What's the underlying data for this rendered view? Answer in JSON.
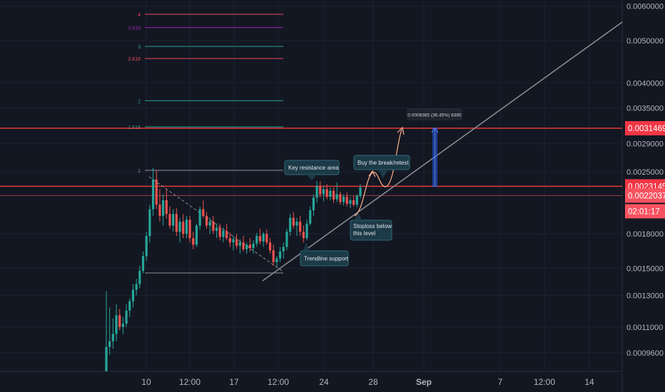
{
  "colors": {
    "background": "#131722",
    "grid": "#1e2230",
    "axis_text": "#b2b5be",
    "bull": "#26a69a",
    "bear": "#ef5350",
    "resistance_line": "#d32f2f",
    "support_line": "#8c8f96",
    "annotation_fill": "#1c3a47",
    "annotation_border": "#2f6a7a",
    "projection": "#2962ff"
  },
  "chart_data": {
    "type": "candlestick",
    "scale": "log",
    "ylim": [
      0.00087,
      0.0062
    ],
    "x_ticks": [
      "10",
      "12:00",
      "17",
      "12:00",
      "24",
      "28",
      "Sep",
      "7",
      "12:00",
      "14"
    ],
    "y_ticks": [
      "0.0060000",
      "0.0050000",
      "0.0040000",
      "0.0035000",
      "0.0029000",
      "0.0025000",
      "0.0018000",
      "0.0015000",
      "0.0013000",
      "0.0011000",
      "0.0009600"
    ],
    "price_labels": [
      {
        "text": "0.0031469",
        "value": 0.0031469,
        "color": "#f23645"
      },
      {
        "text": "0.0023145",
        "value": 0.0023145,
        "color": "#f23645"
      },
      {
        "text": "0.0022037",
        "value": 0.0022037,
        "color": "#f7525f"
      },
      {
        "text": "02:01:17",
        "value": 0.00195,
        "color": "#f7525f"
      }
    ],
    "fib_levels": [
      {
        "label": "4",
        "value": 0.00575,
        "color": "#e84a5f"
      },
      {
        "label": "3.618",
        "value": 0.00536,
        "color": "#9c27b0"
      },
      {
        "label": "3",
        "value": 0.00485,
        "color": "#26a69a"
      },
      {
        "label": "2.618",
        "value": 0.00455,
        "color": "#e84a5f"
      },
      {
        "label": "2",
        "value": 0.00364,
        "color": "#26a69a"
      },
      {
        "label": "1.618",
        "value": 0.00317,
        "color": "#26a69a"
      },
      {
        "label": "1",
        "value": 0.00252,
        "color": "#8c8f96"
      }
    ],
    "candles": [
      {
        "o": 0.00087,
        "h": 0.00133,
        "l": 0.00087,
        "c": 0.00099
      },
      {
        "o": 0.00099,
        "h": 0.00122,
        "l": 0.00095,
        "c": 0.00102
      },
      {
        "o": 0.00102,
        "h": 0.00115,
        "l": 0.00098,
        "c": 0.00106
      },
      {
        "o": 0.00106,
        "h": 0.00124,
        "l": 0.00102,
        "c": 0.00117
      },
      {
        "o": 0.00117,
        "h": 0.00121,
        "l": 0.00108,
        "c": 0.0011
      },
      {
        "o": 0.0011,
        "h": 0.00116,
        "l": 0.00106,
        "c": 0.00112
      },
      {
        "o": 0.00112,
        "h": 0.00124,
        "l": 0.0011,
        "c": 0.0012
      },
      {
        "o": 0.0012,
        "h": 0.00128,
        "l": 0.00116,
        "c": 0.00126
      },
      {
        "o": 0.00126,
        "h": 0.00138,
        "l": 0.00122,
        "c": 0.00134
      },
      {
        "o": 0.00134,
        "h": 0.00142,
        "l": 0.0013,
        "c": 0.00138
      },
      {
        "o": 0.00138,
        "h": 0.00152,
        "l": 0.00135,
        "c": 0.00148
      },
      {
        "o": 0.00148,
        "h": 0.00164,
        "l": 0.00146,
        "c": 0.0016
      },
      {
        "o": 0.0016,
        "h": 0.00182,
        "l": 0.00156,
        "c": 0.00178
      },
      {
        "o": 0.00178,
        "h": 0.0021,
        "l": 0.00172,
        "c": 0.00205
      },
      {
        "o": 0.00205,
        "h": 0.00255,
        "l": 0.00198,
        "c": 0.0024
      },
      {
        "o": 0.0024,
        "h": 0.00252,
        "l": 0.00205,
        "c": 0.0021
      },
      {
        "o": 0.0021,
        "h": 0.00228,
        "l": 0.00192,
        "c": 0.00198
      },
      {
        "o": 0.00198,
        "h": 0.00222,
        "l": 0.00188,
        "c": 0.00215
      },
      {
        "o": 0.00215,
        "h": 0.00228,
        "l": 0.00195,
        "c": 0.002
      },
      {
        "o": 0.002,
        "h": 0.00208,
        "l": 0.00185,
        "c": 0.00188
      },
      {
        "o": 0.00188,
        "h": 0.00205,
        "l": 0.00182,
        "c": 0.002
      },
      {
        "o": 0.002,
        "h": 0.00206,
        "l": 0.00178,
        "c": 0.00182
      },
      {
        "o": 0.00182,
        "h": 0.00196,
        "l": 0.00172,
        "c": 0.00192
      },
      {
        "o": 0.00192,
        "h": 0.002,
        "l": 0.00176,
        "c": 0.0018
      },
      {
        "o": 0.0018,
        "h": 0.00198,
        "l": 0.00176,
        "c": 0.00194
      },
      {
        "o": 0.00194,
        "h": 0.00198,
        "l": 0.00172,
        "c": 0.00176
      },
      {
        "o": 0.00176,
        "h": 0.00182,
        "l": 0.00166,
        "c": 0.0017
      },
      {
        "o": 0.0017,
        "h": 0.0019,
        "l": 0.00168,
        "c": 0.00188
      },
      {
        "o": 0.00188,
        "h": 0.00208,
        "l": 0.00184,
        "c": 0.00205
      },
      {
        "o": 0.00205,
        "h": 0.00215,
        "l": 0.00196,
        "c": 0.00198
      },
      {
        "o": 0.00198,
        "h": 0.00202,
        "l": 0.00185,
        "c": 0.00188
      },
      {
        "o": 0.00188,
        "h": 0.00196,
        "l": 0.0018,
        "c": 0.00192
      },
      {
        "o": 0.00192,
        "h": 0.00198,
        "l": 0.0018,
        "c": 0.00183
      },
      {
        "o": 0.00183,
        "h": 0.0019,
        "l": 0.00176,
        "c": 0.00186
      },
      {
        "o": 0.00186,
        "h": 0.0019,
        "l": 0.00174,
        "c": 0.00177
      },
      {
        "o": 0.00177,
        "h": 0.00186,
        "l": 0.00172,
        "c": 0.00183
      },
      {
        "o": 0.00183,
        "h": 0.0019,
        "l": 0.00174,
        "c": 0.00176
      },
      {
        "o": 0.00176,
        "h": 0.00181,
        "l": 0.00168,
        "c": 0.00172
      },
      {
        "o": 0.00172,
        "h": 0.00178,
        "l": 0.00165,
        "c": 0.00175
      },
      {
        "o": 0.00175,
        "h": 0.0018,
        "l": 0.00166,
        "c": 0.00169
      },
      {
        "o": 0.00169,
        "h": 0.00175,
        "l": 0.00162,
        "c": 0.00172
      },
      {
        "o": 0.00172,
        "h": 0.00178,
        "l": 0.00164,
        "c": 0.00166
      },
      {
        "o": 0.00166,
        "h": 0.00172,
        "l": 0.00162,
        "c": 0.0017
      },
      {
        "o": 0.0017,
        "h": 0.00176,
        "l": 0.00164,
        "c": 0.00167
      },
      {
        "o": 0.00167,
        "h": 0.00174,
        "l": 0.00162,
        "c": 0.00171
      },
      {
        "o": 0.00171,
        "h": 0.00181,
        "l": 0.00168,
        "c": 0.00178
      },
      {
        "o": 0.00178,
        "h": 0.00185,
        "l": 0.0017,
        "c": 0.00173
      },
      {
        "o": 0.00173,
        "h": 0.00182,
        "l": 0.00168,
        "c": 0.0018
      },
      {
        "o": 0.0018,
        "h": 0.00184,
        "l": 0.0017,
        "c": 0.00172
      },
      {
        "o": 0.00172,
        "h": 0.00176,
        "l": 0.00162,
        "c": 0.00165
      },
      {
        "o": 0.00165,
        "h": 0.0017,
        "l": 0.00152,
        "c": 0.00155
      },
      {
        "o": 0.00155,
        "h": 0.0016,
        "l": 0.00151,
        "c": 0.00158
      },
      {
        "o": 0.00158,
        "h": 0.00168,
        "l": 0.00155,
        "c": 0.00164
      },
      {
        "o": 0.00164,
        "h": 0.00172,
        "l": 0.00158,
        "c": 0.00168
      },
      {
        "o": 0.00168,
        "h": 0.00185,
        "l": 0.00165,
        "c": 0.00182
      },
      {
        "o": 0.00182,
        "h": 0.002,
        "l": 0.00178,
        "c": 0.00196
      },
      {
        "o": 0.00196,
        "h": 0.00202,
        "l": 0.00185,
        "c": 0.00188
      },
      {
        "o": 0.00188,
        "h": 0.00196,
        "l": 0.00178,
        "c": 0.00192
      },
      {
        "o": 0.00192,
        "h": 0.00198,
        "l": 0.00178,
        "c": 0.00182
      },
      {
        "o": 0.00182,
        "h": 0.00188,
        "l": 0.00172,
        "c": 0.00176
      },
      {
        "o": 0.00176,
        "h": 0.00194,
        "l": 0.00174,
        "c": 0.0019
      },
      {
        "o": 0.0019,
        "h": 0.00208,
        "l": 0.00188,
        "c": 0.00204
      },
      {
        "o": 0.00204,
        "h": 0.00222,
        "l": 0.00198,
        "c": 0.00218
      },
      {
        "o": 0.00218,
        "h": 0.00238,
        "l": 0.00212,
        "c": 0.00232
      },
      {
        "o": 0.00232,
        "h": 0.00238,
        "l": 0.00218,
        "c": 0.00222
      },
      {
        "o": 0.00222,
        "h": 0.00232,
        "l": 0.00214,
        "c": 0.00228
      },
      {
        "o": 0.00228,
        "h": 0.00234,
        "l": 0.00216,
        "c": 0.00219
      },
      {
        "o": 0.00219,
        "h": 0.0023,
        "l": 0.00215,
        "c": 0.00226
      },
      {
        "o": 0.00226,
        "h": 0.0023,
        "l": 0.00212,
        "c": 0.00216
      },
      {
        "o": 0.00216,
        "h": 0.00236,
        "l": 0.00213,
        "c": 0.00222
      },
      {
        "o": 0.00222,
        "h": 0.00225,
        "l": 0.0021,
        "c": 0.00213
      },
      {
        "o": 0.00213,
        "h": 0.00222,
        "l": 0.00209,
        "c": 0.00219
      },
      {
        "o": 0.00219,
        "h": 0.00224,
        "l": 0.00208,
        "c": 0.00211
      },
      {
        "o": 0.00211,
        "h": 0.00218,
        "l": 0.00206,
        "c": 0.00215
      },
      {
        "o": 0.00215,
        "h": 0.0022,
        "l": 0.00208,
        "c": 0.0021
      },
      {
        "o": 0.0021,
        "h": 0.00222,
        "l": 0.00207,
        "c": 0.0022
      },
      {
        "o": 0.0022,
        "h": 0.00234,
        "l": 0.00217,
        "c": 0.0023
      }
    ],
    "annotations": [
      {
        "text": "Key resistance area",
        "value": 0.00254
      },
      {
        "text": "Buy the break/retest",
        "value": 0.00258
      },
      {
        "text": "Stoploss below this level",
        "value": 0.00182
      },
      {
        "text": "Trendline support",
        "value": 0.00164
      }
    ],
    "projection_label": "0.0008385 (36.45%) 8385",
    "projection_range": [
      0.0023145,
      0.0031469
    ]
  }
}
